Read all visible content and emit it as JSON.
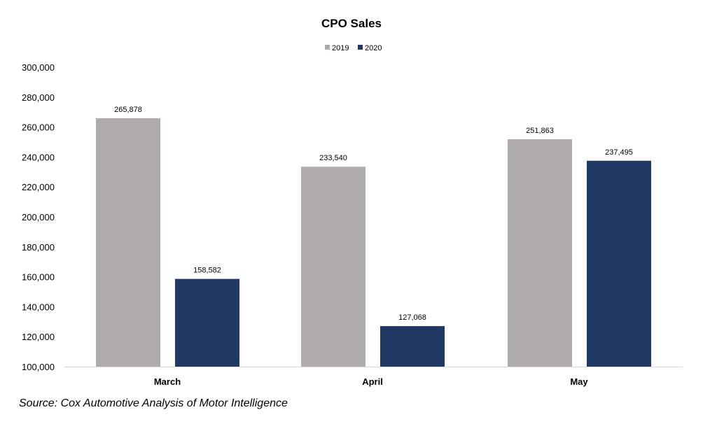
{
  "chart_data": {
    "type": "bar",
    "title": "CPO Sales",
    "categories": [
      "March",
      "April",
      "May"
    ],
    "series": [
      {
        "name": "2019",
        "values": [
          265878,
          233540,
          251863
        ],
        "labels": [
          "265,878",
          "233,540",
          "251,863"
        ],
        "color": "#AFABAB"
      },
      {
        "name": "2020",
        "values": [
          158582,
          127068,
          237495
        ],
        "labels": [
          "158,582",
          "127,068",
          "237,495"
        ],
        "color": "#203864"
      }
    ],
    "ylim": [
      100000,
      300000
    ],
    "yticks": [
      100000,
      120000,
      140000,
      160000,
      180000,
      200000,
      220000,
      240000,
      260000,
      280000,
      300000
    ],
    "ytick_labels": [
      "100,000",
      "120,000",
      "140,000",
      "160,000",
      "180,000",
      "200,000",
      "220,000",
      "240,000",
      "260,000",
      "280,000",
      "300,000"
    ],
    "xlabel": "",
    "ylabel": "",
    "grid": false,
    "legend_position": "top-center",
    "axis_color": "#D9D9D9"
  },
  "source_note": "Source: Cox Automotive Analysis of Motor Intelligence"
}
